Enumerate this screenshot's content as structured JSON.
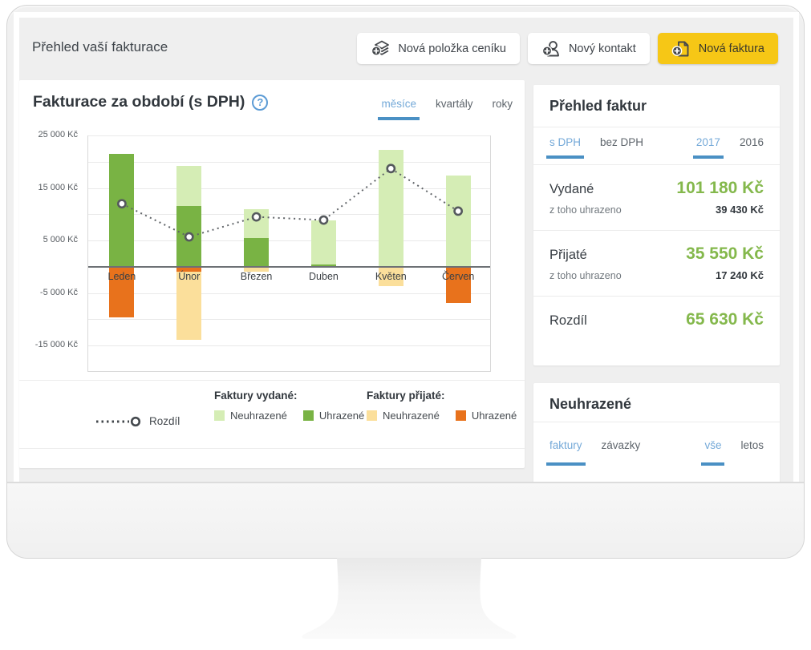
{
  "header": {
    "title": "Přehled vaší fakturace",
    "buttons": [
      {
        "label": "Nová položka ceníku",
        "icon": "price-list-add-icon",
        "accent": false
      },
      {
        "label": "Nový kontakt",
        "icon": "contact-add-icon",
        "accent": false
      },
      {
        "label": "Nová faktura",
        "icon": "invoice-add-icon",
        "accent": true
      }
    ],
    "accent_color": "#f6c716"
  },
  "chart_card": {
    "title": "Fakturace za období (s DPH)",
    "help_icon": "?",
    "tabs": [
      {
        "label": "měsíce",
        "active": true
      },
      {
        "label": "kvartály",
        "active": false
      },
      {
        "label": "roky",
        "active": false
      }
    ],
    "legend": {
      "rozdil_label": "Rozdíl",
      "vydane_heading": "Faktury vydané:",
      "prijate_heading": "Faktury přijaté:",
      "items_vydane": [
        {
          "label": "Neuhrazené",
          "color": "#d5edb5"
        },
        {
          "label": "Uhrazené",
          "color": "#79b344"
        }
      ],
      "items_prijate": [
        {
          "label": "Neuhrazené",
          "color": "#fbdf9b"
        },
        {
          "label": "Uhrazené",
          "color": "#e8721c"
        }
      ]
    }
  },
  "chart_data": {
    "type": "bar",
    "title": "Fakturace za období (s DPH)",
    "categories": [
      "Leden",
      "Únor",
      "Březen",
      "Duben",
      "Květen",
      "Červen"
    ],
    "unit": "Kč",
    "ylim": [
      -20000,
      25000
    ],
    "gridline_step": 5000,
    "grid": true,
    "yticks": [
      {
        "value": 25000,
        "label": "25 000 Kč"
      },
      {
        "value": 15000,
        "label": "15 000 Kč"
      },
      {
        "value": 5000,
        "label": "5 000 Kč"
      },
      {
        "value": -5000,
        "label": "-5 000 Kč"
      },
      {
        "value": -15000,
        "label": "-15 000 Kč"
      }
    ],
    "series": [
      {
        "name": "Faktury vydané – Uhrazené",
        "color": "#79b344",
        "values": [
          21500,
          11600,
          5400,
          400,
          0,
          0
        ]
      },
      {
        "name": "Faktury vydané – Neuhrazené",
        "color": "#d5edb5",
        "values": [
          0,
          7600,
          5600,
          8400,
          22300,
          17400
        ]
      },
      {
        "name": "Faktury přijaté – Uhrazené",
        "color": "#e8721c",
        "values": [
          -9600,
          -900,
          0,
          0,
          0,
          -6900
        ]
      },
      {
        "name": "Faktury přijaté – Neuhrazené",
        "color": "#fbdf9b",
        "values": [
          0,
          -13000,
          -900,
          0,
          -3700,
          0
        ]
      }
    ],
    "line_series": {
      "name": "Rozdíl",
      "style": "dotted",
      "marker": "circle",
      "values": [
        12000,
        5700,
        9500,
        8900,
        18700,
        10600
      ]
    },
    "legend_position": "bottom"
  },
  "summary_card": {
    "title": "Přehled faktur",
    "tabs_left": [
      {
        "label": "s DPH",
        "active": true
      },
      {
        "label": "bez DPH",
        "active": false
      }
    ],
    "tabs_right": [
      {
        "label": "2017",
        "active": true
      },
      {
        "label": "2016",
        "active": false
      }
    ],
    "rows": [
      {
        "label": "Vydané",
        "value": "101 180 Kč",
        "sub_label": "z toho uhrazeno",
        "sub_value": "39 430 Kč"
      },
      {
        "label": "Přijaté",
        "value": "35 550 Kč",
        "sub_label": "z toho uhrazeno",
        "sub_value": "17 240 Kč"
      },
      {
        "label": "Rozdíl",
        "value": "65 630 Kč"
      }
    ],
    "value_color": "#84b84c"
  },
  "unpaid_card": {
    "title": "Neuhrazené",
    "tabs_left": [
      {
        "label": "faktury",
        "active": true
      },
      {
        "label": "závazky",
        "active": false
      }
    ],
    "tabs_right": [
      {
        "label": "vše",
        "active": true
      },
      {
        "label": "letos",
        "active": false
      }
    ]
  },
  "colors": {
    "tab_active": "#74a9d8",
    "tab_underline": "#4a90c4",
    "amount_green": "#84b84c",
    "accent_yellow": "#f6c716"
  }
}
